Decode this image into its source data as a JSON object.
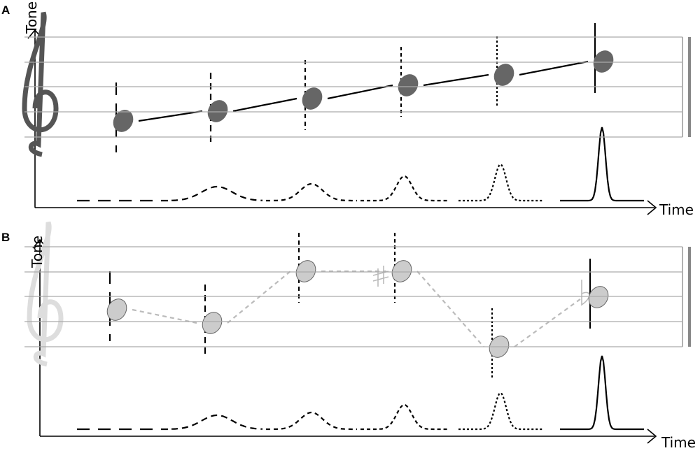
{
  "panels": [
    {
      "label": "A",
      "y_axis_label": "Tone",
      "x_axis_label": "Time"
    },
    {
      "label": "B",
      "y_axis_label": "Tone",
      "x_axis_label": "Time"
    }
  ]
}
